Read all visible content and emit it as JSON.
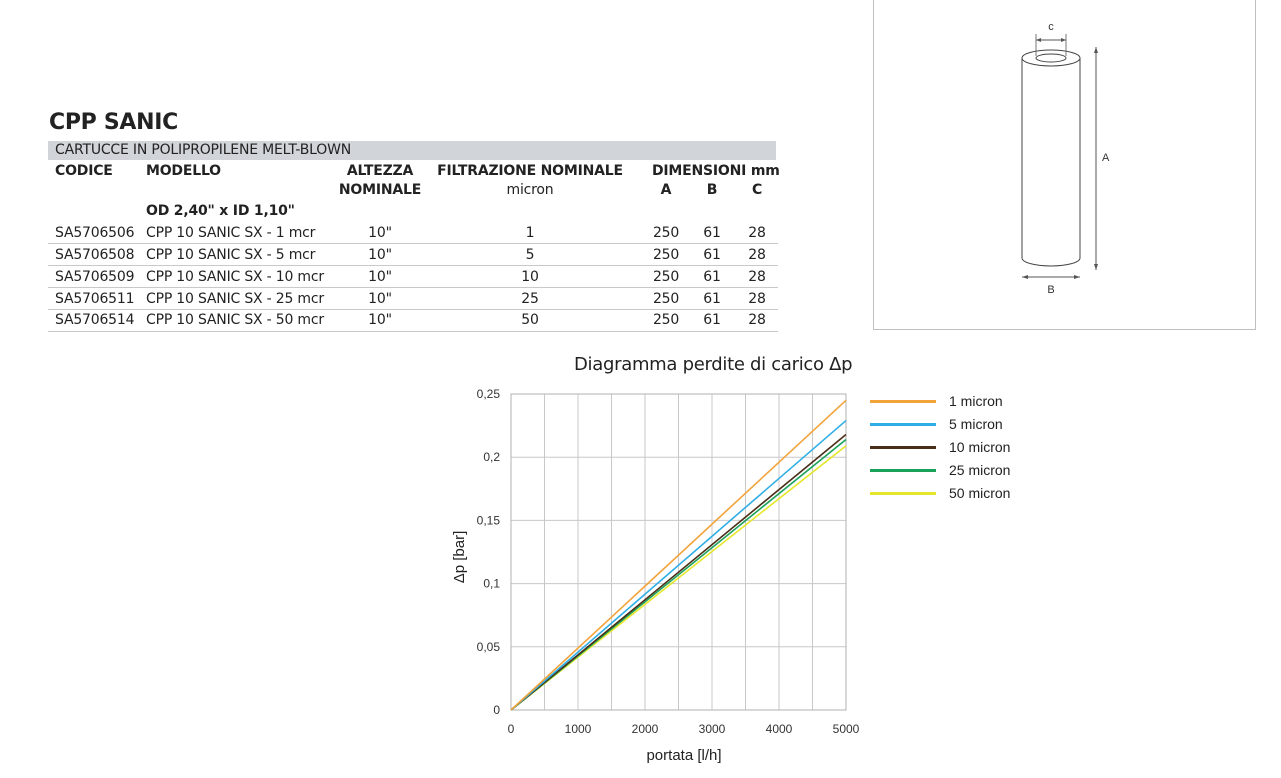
{
  "product": {
    "title": "CPP SANIC",
    "subtitle": "CARTUCCE IN POLIPROPILENE MELT-BLOWN"
  },
  "table": {
    "headers": {
      "codice": "CODICE",
      "modello": "MODELLO",
      "altezza_1": "ALTEZZA",
      "altezza_2": "NOMINALE",
      "filtrazione_1": "FILTRAZIONE NOMINALE",
      "filtrazione_2": "micron",
      "dimensioni": "DIMENSIONI mm",
      "dim_a": "A",
      "dim_b": "B",
      "dim_c": "C"
    },
    "group_label": "OD 2,40\" x ID 1,10\"",
    "rows": [
      {
        "codice": "SA5706506",
        "modello": "CPP 10 SANIC SX - 1 mcr",
        "altezza": "10\"",
        "filtrazione": "1",
        "a": "250",
        "b": "61",
        "c": "28"
      },
      {
        "codice": "SA5706508",
        "modello": "CPP 10 SANIC SX - 5 mcr",
        "altezza": "10\"",
        "filtrazione": "5",
        "a": "250",
        "b": "61",
        "c": "28"
      },
      {
        "codice": "SA5706509",
        "modello": "CPP 10 SANIC SX - 10 mcr",
        "altezza": "10\"",
        "filtrazione": "10",
        "a": "250",
        "b": "61",
        "c": "28"
      },
      {
        "codice": "SA5706511",
        "modello": "CPP 10 SANIC SX - 25 mcr",
        "altezza": "10\"",
        "filtrazione": "25",
        "a": "250",
        "b": "61",
        "c": "28"
      },
      {
        "codice": "SA5706514",
        "modello": "CPP 10 SANIC SX - 50 mcr",
        "altezza": "10\"",
        "filtrazione": "50",
        "a": "250",
        "b": "61",
        "c": "28"
      }
    ]
  },
  "cartridge_drawing": {
    "label_a": "A",
    "label_b": "B",
    "label_c": "c"
  },
  "chart_data": {
    "type": "line",
    "title": "Diagramma perdite di carico Δp",
    "xlabel": "portata  [l/h]",
    "ylabel": "Δp  [bar]",
    "xlim": [
      0,
      5000
    ],
    "ylim": [
      0,
      0.25
    ],
    "x_ticks": [
      "0",
      "1000",
      "2000",
      "3000",
      "4000",
      "5000"
    ],
    "y_ticks": [
      "0",
      "0,05",
      "0,1",
      "0,15",
      "0,2",
      "0,25"
    ],
    "grid": true,
    "legend_position": "right",
    "series": [
      {
        "name": "1 micron",
        "color": "#f2a33a",
        "x": [
          0,
          5000
        ],
        "y": [
          0,
          0.245
        ]
      },
      {
        "name": "5 micron",
        "color": "#2eaee6",
        "x": [
          0,
          5000
        ],
        "y": [
          0,
          0.229
        ]
      },
      {
        "name": "10 micron",
        "color": "#4a2e18",
        "x": [
          0,
          5000
        ],
        "y": [
          0,
          0.218
        ]
      },
      {
        "name": "25 micron",
        "color": "#1aa25a",
        "x": [
          0,
          5000
        ],
        "y": [
          0,
          0.214
        ]
      },
      {
        "name": "50 micron",
        "color": "#e6e62a",
        "x": [
          0,
          5000
        ],
        "y": [
          0,
          0.209
        ]
      }
    ]
  }
}
